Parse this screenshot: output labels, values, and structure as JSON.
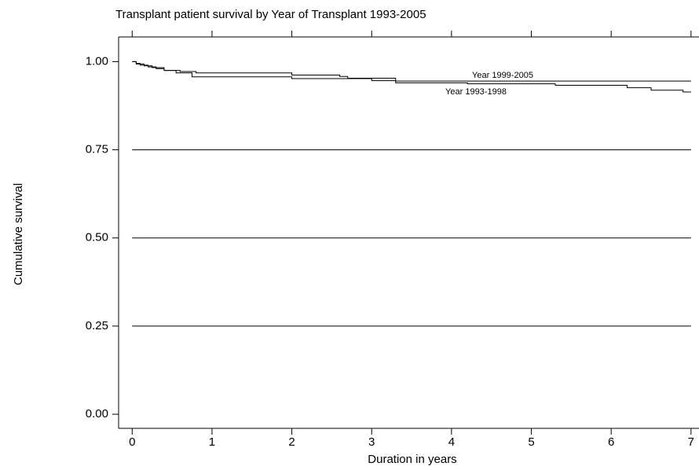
{
  "chart_data": {
    "type": "step",
    "title": "Transplant patient survival by Year of Transplant 1993-2005",
    "x_label": "Duration in years",
    "y_label": "Cumulative survival",
    "xlim": [
      -0.17,
      7.1
    ],
    "ylim": [
      -0.04,
      1.07
    ],
    "xticks": [
      0,
      1,
      2,
      3,
      4,
      5,
      6,
      7
    ],
    "yticks": [
      {
        "value": 0,
        "label": "0.00"
      },
      {
        "value": 0.25,
        "label": "0.25"
      },
      {
        "value": 0.5,
        "label": "0.50"
      },
      {
        "value": 0.75,
        "label": "0.75"
      },
      {
        "value": 1,
        "label": "1.00"
      }
    ],
    "grid": true,
    "series": [
      {
        "name": "Year 1999-2005",
        "color": "#000000",
        "x": [
          0,
          0.05,
          0.1,
          0.2,
          0.3,
          0.4,
          0.6,
          0.8,
          2.0,
          2.6,
          2.7,
          3.3,
          7.0
        ],
        "values": [
          1,
          0.995,
          0.99,
          0.985,
          0.98,
          0.975,
          0.972,
          0.968,
          0.962,
          0.958,
          0.953,
          0.945,
          0.945
        ]
      },
      {
        "name": "Year 1993-1998",
        "color": "#000000",
        "x": [
          0,
          0.05,
          0.15,
          0.25,
          0.4,
          0.55,
          0.75,
          2.0,
          3.0,
          3.3,
          4.2,
          5.3,
          6.2,
          6.5,
          6.9,
          7.0
        ],
        "values": [
          1,
          0.993,
          0.988,
          0.983,
          0.975,
          0.968,
          0.957,
          0.952,
          0.946,
          0.94,
          0.937,
          0.933,
          0.926,
          0.919,
          0.914,
          0.914
        ]
      }
    ]
  }
}
